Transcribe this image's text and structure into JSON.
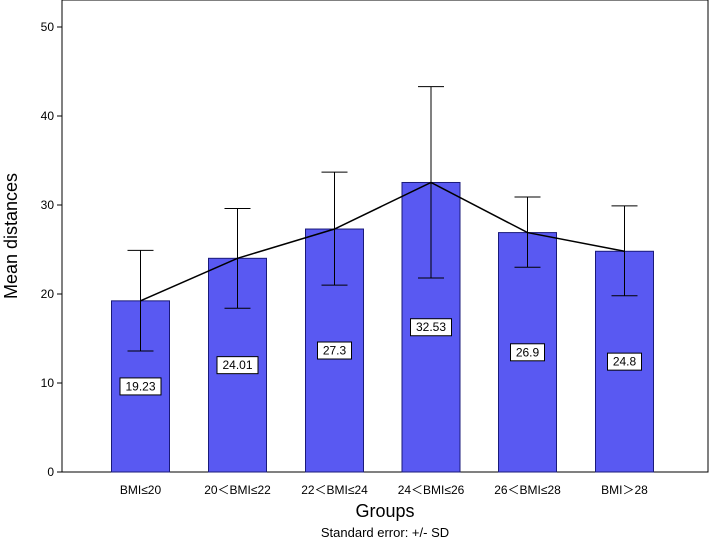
{
  "chart_data": {
    "type": "bar",
    "categories": [
      "BMI≤20",
      "20＜BMI≤22",
      "22＜BMI≤24",
      "24＜BMI≤26",
      "26＜BMI≤28",
      "BMI＞28"
    ],
    "values": [
      19.23,
      24.01,
      27.3,
      32.53,
      26.9,
      24.8
    ],
    "data_labels": [
      "19.23",
      "24.01",
      "27.3",
      "32.53",
      "26.9",
      "24.8"
    ],
    "error_lower": [
      13.6,
      18.4,
      21.0,
      21.8,
      23.0,
      19.8
    ],
    "error_upper": [
      24.9,
      29.6,
      33.7,
      43.3,
      30.9,
      29.9
    ],
    "connect_means_line": true,
    "title": "",
    "xlabel": "Groups",
    "ylabel": "Mean distances",
    "footnote": "Standard error: +/- SD",
    "ylim": [
      0,
      50
    ],
    "yticks": [
      0,
      10,
      20,
      30,
      40,
      50
    ],
    "grid": false,
    "colors": {
      "bar_fill": "#5959f2",
      "bar_stroke": "#1a1a7a",
      "line": "#000000",
      "background": "#ffffff"
    }
  }
}
